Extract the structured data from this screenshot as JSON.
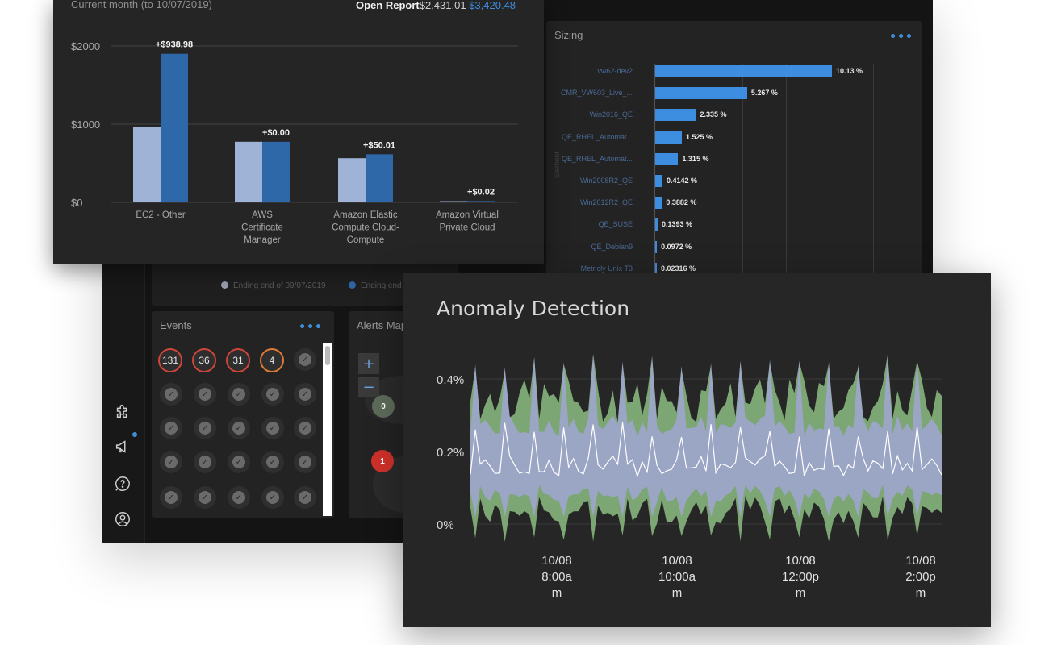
{
  "cost_panel": {
    "subtitle": "Current month (to 10/07/2019)",
    "report_label": "Open Report",
    "prev_total": "$2,431.01",
    "cur_total": "$3,420.48",
    "y_ticks": [
      "$2000",
      "$1000",
      "$0"
    ]
  },
  "sizing_panel": {
    "title": "Sizing",
    "menu": "•••",
    "axis_title": "Element"
  },
  "legend": {
    "item1": "Ending end of 09/07/2019",
    "item2": "Ending end"
  },
  "events_panel": {
    "title": "Events",
    "menu": "•••",
    "badges": [
      "131",
      "36",
      "31",
      "4"
    ]
  },
  "alerts_panel": {
    "title": "Alerts Map",
    "zoom_in": "+",
    "zoom_out": "−",
    "markers": [
      "0",
      "1"
    ]
  },
  "anomaly_panel": {
    "title": "Anomaly Detection"
  },
  "colors": {
    "cost_prev": "#9eb3d6",
    "cost_cur": "#2f68a8",
    "sizing_bar": "#3d8de0",
    "anomaly_outer": "#86b57c",
    "anomaly_inner": "#9da4c8",
    "anomaly_line": "#ffffff"
  },
  "chart_data": [
    {
      "type": "bar",
      "categories": [
        "EC2 - Other",
        "AWS Certificate Manager",
        "Amazon Elastic Compute Cloud- Compute",
        "Amazon Virtual Private Cloud"
      ],
      "category_lines": [
        [
          "EC2 - Other"
        ],
        [
          "AWS",
          "Certificate",
          "Manager"
        ],
        [
          "Amazon Elastic",
          "Compute Cloud-",
          "Compute"
        ],
        [
          "Amazon Virtual",
          "Private Cloud"
        ]
      ],
      "series": [
        {
          "values": [
            960,
            775,
            565,
            15
          ]
        },
        {
          "values": [
            1900,
            775,
            615,
            17
          ]
        }
      ],
      "data_labels": [
        "+$938.98",
        "+$0.00",
        "+$50.01",
        "+$0.02"
      ],
      "y_ticks": [
        0,
        1000,
        2000
      ],
      "y_tick_labels": [
        "$0",
        "$1000",
        "$2000"
      ],
      "ylim": [
        0,
        2100
      ],
      "grid": true
    },
    {
      "type": "bar",
      "orientation": "horizontal",
      "categories": [
        "vw62-dev2",
        "CMR_VW603_Live_...",
        "Win2016_QE",
        "QE_RHEL_Automat...",
        "QE_RHEL_Automat...",
        "Win2008R2_QE",
        "Win2012R2_QE",
        "QE_SUSE",
        "QE_Debian9",
        "Metricly Unix T3"
      ],
      "values": [
        10.13,
        5.267,
        2.335,
        1.525,
        1.315,
        0.4142,
        0.3882,
        0.1393,
        0.0972,
        0.02316
      ],
      "value_labels": [
        "10.13 %",
        "5.267 %",
        "2.335 %",
        "1.525 %",
        "1.315 %",
        "0.4142 %",
        "0.3882 %",
        "0.1393 %",
        "0.0972 %",
        "0.02316 %"
      ],
      "ylabel": "Element",
      "grid": true
    },
    {
      "type": "area",
      "y_ticks": [
        "0.4%",
        "0.2%",
        "0%"
      ],
      "y_tick_values": [
        0.4,
        0.2,
        0
      ],
      "x_tick_lines": [
        [
          "10/08",
          "8:00a",
          "m"
        ],
        [
          "10/08",
          "10:00a",
          "m"
        ],
        [
          "10/08",
          "12:00p",
          "m"
        ],
        [
          "10/08",
          "2:00p",
          "m"
        ]
      ],
      "ylim": [
        0,
        0.45
      ],
      "series": [
        {
          "role": "outer band",
          "approx_range": [
            0.0,
            0.47
          ]
        },
        {
          "role": "inner band",
          "approx_range": [
            0.05,
            0.45
          ]
        },
        {
          "role": "actual value",
          "approx_range": [
            0.12,
            0.25
          ]
        }
      ],
      "grid": true
    }
  ]
}
